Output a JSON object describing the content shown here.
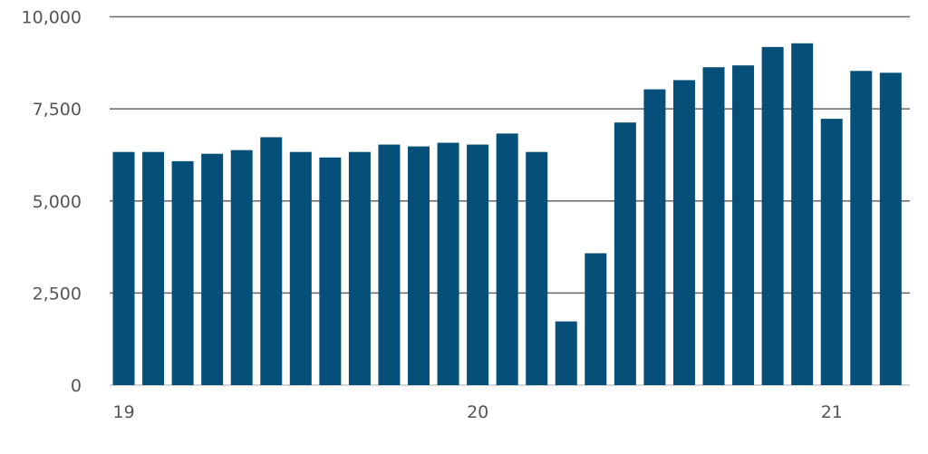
{
  "chart_data": {
    "type": "bar",
    "title": "",
    "xlabel": "",
    "ylabel": "",
    "ylim": [
      0,
      10000
    ],
    "yticks": [
      0,
      2500,
      5000,
      7500,
      10000
    ],
    "ytick_labels": [
      "0",
      "2,500",
      "5,000",
      "7,500",
      "10,000"
    ],
    "xtick_labels": [
      {
        "label": "19",
        "index": 0
      },
      {
        "label": "20",
        "index": 12
      },
      {
        "label": "21",
        "index": 24
      }
    ],
    "grid": true,
    "values": [
      6330,
      6330,
      6080,
      6280,
      6380,
      6730,
      6330,
      6180,
      6330,
      6530,
      6480,
      6580,
      6530,
      6830,
      6330,
      1730,
      3580,
      7130,
      8030,
      8280,
      8630,
      8680,
      9180,
      9280,
      7230,
      8530,
      8480
    ],
    "colors": {
      "bar": "#064f78",
      "grid": "#666666",
      "baseline": "#aaaaaa",
      "text": "#555555"
    }
  }
}
